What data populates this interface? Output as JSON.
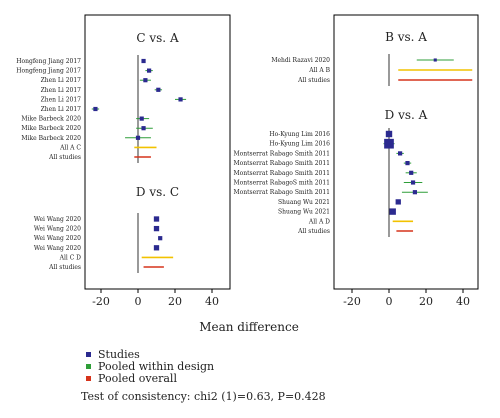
{
  "chart_data": {
    "type": "forest",
    "xlabel": "Mean difference",
    "x_ticks": [
      -20,
      0,
      20,
      40
    ],
    "xlim": [
      -30,
      50
    ],
    "colors": {
      "studies": "#2b2a8f",
      "pooled_within_design": "#2e9e38",
      "pooled_overall": "#d6331b",
      "pooled_within_design_summary": "#f2c200"
    },
    "legend": {
      "position": "bottom-left",
      "entries": [
        {
          "key": "studies",
          "label": "Studies",
          "color": "#2b2a8f"
        },
        {
          "key": "pooled_within_design",
          "label": "Pooled within design",
          "color": "#2e9e38"
        },
        {
          "key": "pooled_overall",
          "label": "Pooled overall",
          "color": "#d6331b"
        }
      ]
    },
    "consistency_test": "Test of consistency: chi2 (1)=0.63, P=0.428",
    "panels": [
      {
        "title": "C vs. A",
        "rows": [
          {
            "label": "Hongfeng Jiang 2017",
            "kind": "study",
            "est": 3,
            "lo": 2,
            "hi": 4,
            "size": 2
          },
          {
            "label": "Hongfeng Jiang 2017",
            "kind": "study",
            "est": 6,
            "lo": 4,
            "hi": 8,
            "size": 2
          },
          {
            "label": "Zhen Li 2017",
            "kind": "study",
            "est": 4,
            "lo": 1,
            "hi": 7,
            "size": 2
          },
          {
            "label": "Zhen Li 2017",
            "kind": "study",
            "est": 11,
            "lo": 9,
            "hi": 13,
            "size": 2
          },
          {
            "label": "Zhen Li 2017",
            "kind": "study",
            "est": 23,
            "lo": 20,
            "hi": 26,
            "size": 2
          },
          {
            "label": "Zhen Li 2017",
            "kind": "study",
            "est": -23,
            "lo": -25,
            "hi": -21,
            "size": 2
          },
          {
            "label": "Mike Barbeck 2020",
            "kind": "study",
            "est": 2,
            "lo": -1,
            "hi": 6,
            "size": 2
          },
          {
            "label": "Mike Barbeck 2020",
            "kind": "study",
            "est": 3,
            "lo": -1,
            "hi": 8,
            "size": 2
          },
          {
            "label": "Mike Barbeck 2020",
            "kind": "study",
            "est": 0,
            "lo": -7,
            "hi": 7,
            "size": 2
          },
          {
            "label": "All A C",
            "kind": "within",
            "est": 4,
            "lo": -2,
            "hi": 10
          },
          {
            "label": "All studies",
            "kind": "overall",
            "est": 2,
            "lo": -2,
            "hi": 7
          }
        ]
      },
      {
        "title": "D vs. C",
        "rows": [
          {
            "label": "Wei Wang 2020",
            "kind": "study",
            "est": 10,
            "lo": 9,
            "hi": 11,
            "size": 3
          },
          {
            "label": "Wei Wang 2020",
            "kind": "study",
            "est": 10,
            "lo": 9,
            "hi": 11,
            "size": 3
          },
          {
            "label": "Wei Wang 2020",
            "kind": "study",
            "est": 12,
            "lo": 11,
            "hi": 13,
            "size": 2
          },
          {
            "label": "Wei Wang 2020",
            "kind": "study",
            "est": 10,
            "lo": 9,
            "hi": 11,
            "size": 3
          },
          {
            "label": "All C D",
            "kind": "within",
            "est": 10,
            "lo": 2,
            "hi": 19
          },
          {
            "label": "All studies",
            "kind": "overall",
            "est": 9,
            "lo": 3,
            "hi": 14
          }
        ]
      },
      {
        "title": "B vs. A",
        "rows": [
          {
            "label": "Mehdi Razavi 2020",
            "kind": "study",
            "est": 25,
            "lo": 15,
            "hi": 35,
            "size": 1
          },
          {
            "label": "All A B",
            "kind": "within",
            "est": 25,
            "lo": 5,
            "hi": 45
          },
          {
            "label": "All studies",
            "kind": "overall",
            "est": 25,
            "lo": 5,
            "hi": 45
          }
        ]
      },
      {
        "title": "D vs. A",
        "rows": [
          {
            "label": "Ho-Kyung Lim 2016",
            "kind": "study",
            "est": 0,
            "lo": -1,
            "hi": 1,
            "size": 4
          },
          {
            "label": "Ho-Kyung Lim 2016",
            "kind": "study",
            "est": 0,
            "lo": -3,
            "hi": 3,
            "size": 7
          },
          {
            "label": "Montserrat Rabago Smith 2011",
            "kind": "study",
            "est": 6,
            "lo": 4,
            "hi": 8,
            "size": 2
          },
          {
            "label": "Montserrat Rabago Smith 2011",
            "kind": "study",
            "est": 10,
            "lo": 8,
            "hi": 12,
            "size": 2
          },
          {
            "label": "Montserrat Rabago Smith 2011",
            "kind": "study",
            "est": 12,
            "lo": 9,
            "hi": 15,
            "size": 2
          },
          {
            "label": "Montserrat RabagoS mith 2011",
            "kind": "study",
            "est": 13,
            "lo": 8,
            "hi": 18,
            "size": 2
          },
          {
            "label": "Montserrat Rabago Smith 2011",
            "kind": "study",
            "est": 14,
            "lo": 7,
            "hi": 21,
            "size": 2
          },
          {
            "label": "Shuang Wu 2021",
            "kind": "study",
            "est": 5,
            "lo": 4,
            "hi": 6,
            "size": 3
          },
          {
            "label": "Shuang Wu 2021",
            "kind": "study",
            "est": 2,
            "lo": 1,
            "hi": 3,
            "size": 4
          },
          {
            "label": "All A D",
            "kind": "within",
            "est": 8,
            "lo": 2,
            "hi": 13
          },
          {
            "label": "All studies",
            "kind": "overall",
            "est": 8,
            "lo": 4,
            "hi": 13
          }
        ]
      }
    ]
  }
}
